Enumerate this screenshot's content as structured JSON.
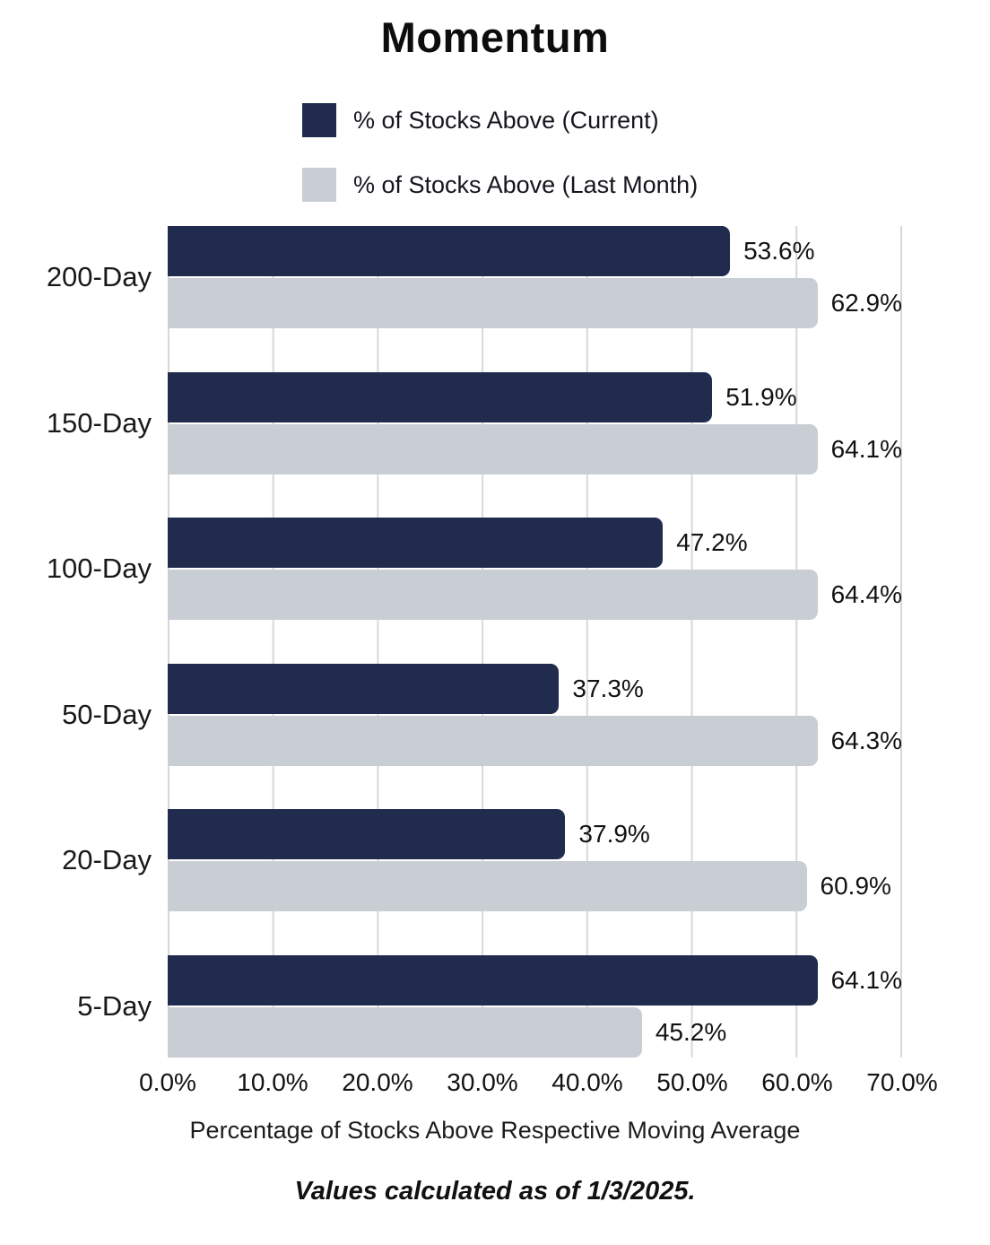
{
  "title": "Momentum",
  "legend": {
    "items": [
      {
        "label": "% of Stocks Above (Current)"
      },
      {
        "label": "% of Stocks Above (Last Month)"
      }
    ]
  },
  "chart_data": {
    "type": "bar",
    "orientation": "horizontal",
    "title": "Momentum",
    "categories": [
      "200-Day",
      "150-Day",
      "100-Day",
      "50-Day",
      "20-Day",
      "5-Day"
    ],
    "series": [
      {
        "name": "% of Stocks Above (Current)",
        "color": "#212b4e",
        "values": [
          53.6,
          51.9,
          47.2,
          37.3,
          37.9,
          64.1
        ]
      },
      {
        "name": "% of Stocks Above (Last Month)",
        "color": "#c9cdd4",
        "values": [
          62.9,
          64.1,
          64.4,
          64.3,
          60.9,
          45.2
        ]
      }
    ],
    "value_suffix": "%",
    "xlabel": "Percentage of Stocks Above Respective Moving Average",
    "xlim": [
      0,
      70
    ],
    "x_ticks": [
      "0.0%",
      "10.0%",
      "20.0%",
      "30.0%",
      "40.0%",
      "50.0%",
      "60.0%",
      "70.0%"
    ],
    "grid": true,
    "gridline_color": "#d8d8d8",
    "legend_position": "top-left-stacked"
  },
  "footer": "Values calculated as of 1/3/2025."
}
